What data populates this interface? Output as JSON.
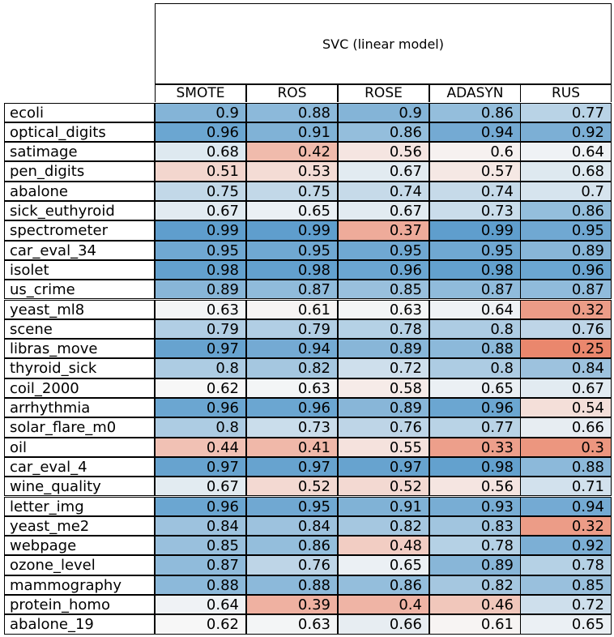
{
  "chart_data": {
    "type": "table",
    "title": "SVC (linear model)",
    "columns": [
      "SMOTE",
      "ROS",
      "ROSE",
      "ADASYN",
      "RUS"
    ],
    "rows": [
      {
        "label": "ecoli",
        "values": [
          0.9,
          0.88,
          0.9,
          0.86,
          0.77
        ]
      },
      {
        "label": "optical_digits",
        "values": [
          0.96,
          0.91,
          0.86,
          0.94,
          0.92
        ]
      },
      {
        "label": "satimage",
        "values": [
          0.68,
          0.42,
          0.56,
          0.6,
          0.64
        ]
      },
      {
        "label": "pen_digits",
        "values": [
          0.51,
          0.53,
          0.67,
          0.57,
          0.68
        ]
      },
      {
        "label": "abalone",
        "values": [
          0.75,
          0.75,
          0.74,
          0.74,
          0.7
        ]
      },
      {
        "label": "sick_euthyroid",
        "values": [
          0.67,
          0.65,
          0.67,
          0.73,
          0.86
        ]
      },
      {
        "label": "spectrometer",
        "values": [
          0.99,
          0.99,
          0.37,
          0.99,
          0.95
        ]
      },
      {
        "label": "car_eval_34",
        "values": [
          0.95,
          0.95,
          0.95,
          0.95,
          0.89
        ]
      },
      {
        "label": "isolet",
        "values": [
          0.98,
          0.98,
          0.96,
          0.98,
          0.96
        ]
      },
      {
        "label": "us_crime",
        "values": [
          0.89,
          0.87,
          0.85,
          0.87,
          0.87
        ]
      },
      {
        "label": "yeast_ml8",
        "values": [
          0.63,
          0.61,
          0.63,
          0.64,
          0.32
        ]
      },
      {
        "label": "scene",
        "values": [
          0.79,
          0.79,
          0.78,
          0.8,
          0.76
        ]
      },
      {
        "label": "libras_move",
        "values": [
          0.97,
          0.94,
          0.89,
          0.88,
          0.25
        ]
      },
      {
        "label": "thyroid_sick",
        "values": [
          0.8,
          0.82,
          0.72,
          0.8,
          0.84
        ]
      },
      {
        "label": "coil_2000",
        "values": [
          0.62,
          0.63,
          0.58,
          0.65,
          0.67
        ]
      },
      {
        "label": "arrhythmia",
        "values": [
          0.96,
          0.96,
          0.89,
          0.96,
          0.54
        ]
      },
      {
        "label": "solar_flare_m0",
        "values": [
          0.8,
          0.73,
          0.76,
          0.77,
          0.66
        ]
      },
      {
        "label": "oil",
        "values": [
          0.44,
          0.41,
          0.55,
          0.33,
          0.3
        ]
      },
      {
        "label": "car_eval_4",
        "values": [
          0.97,
          0.97,
          0.97,
          0.98,
          0.88
        ]
      },
      {
        "label": "wine_quality",
        "values": [
          0.67,
          0.52,
          0.52,
          0.56,
          0.71
        ]
      },
      {
        "label": "letter_img",
        "values": [
          0.96,
          0.95,
          0.91,
          0.93,
          0.94
        ]
      },
      {
        "label": "yeast_me2",
        "values": [
          0.84,
          0.84,
          0.82,
          0.83,
          0.32
        ]
      },
      {
        "label": "webpage",
        "values": [
          0.85,
          0.86,
          0.48,
          0.78,
          0.92
        ]
      },
      {
        "label": "ozone_level",
        "values": [
          0.87,
          0.76,
          0.65,
          0.89,
          0.78
        ]
      },
      {
        "label": "mammography",
        "values": [
          0.88,
          0.88,
          0.86,
          0.82,
          0.85
        ]
      },
      {
        "label": "protein_homo",
        "values": [
          0.64,
          0.39,
          0.4,
          0.46,
          0.72
        ]
      },
      {
        "label": "abalone_19",
        "values": [
          0.62,
          0.63,
          0.66,
          0.61,
          0.65
        ]
      }
    ],
    "colormap": "diverging red-white-blue",
    "colors": {
      "low": "#e8785a",
      "mid": "#f7f7f7",
      "high": "#5b9ccc"
    }
  }
}
